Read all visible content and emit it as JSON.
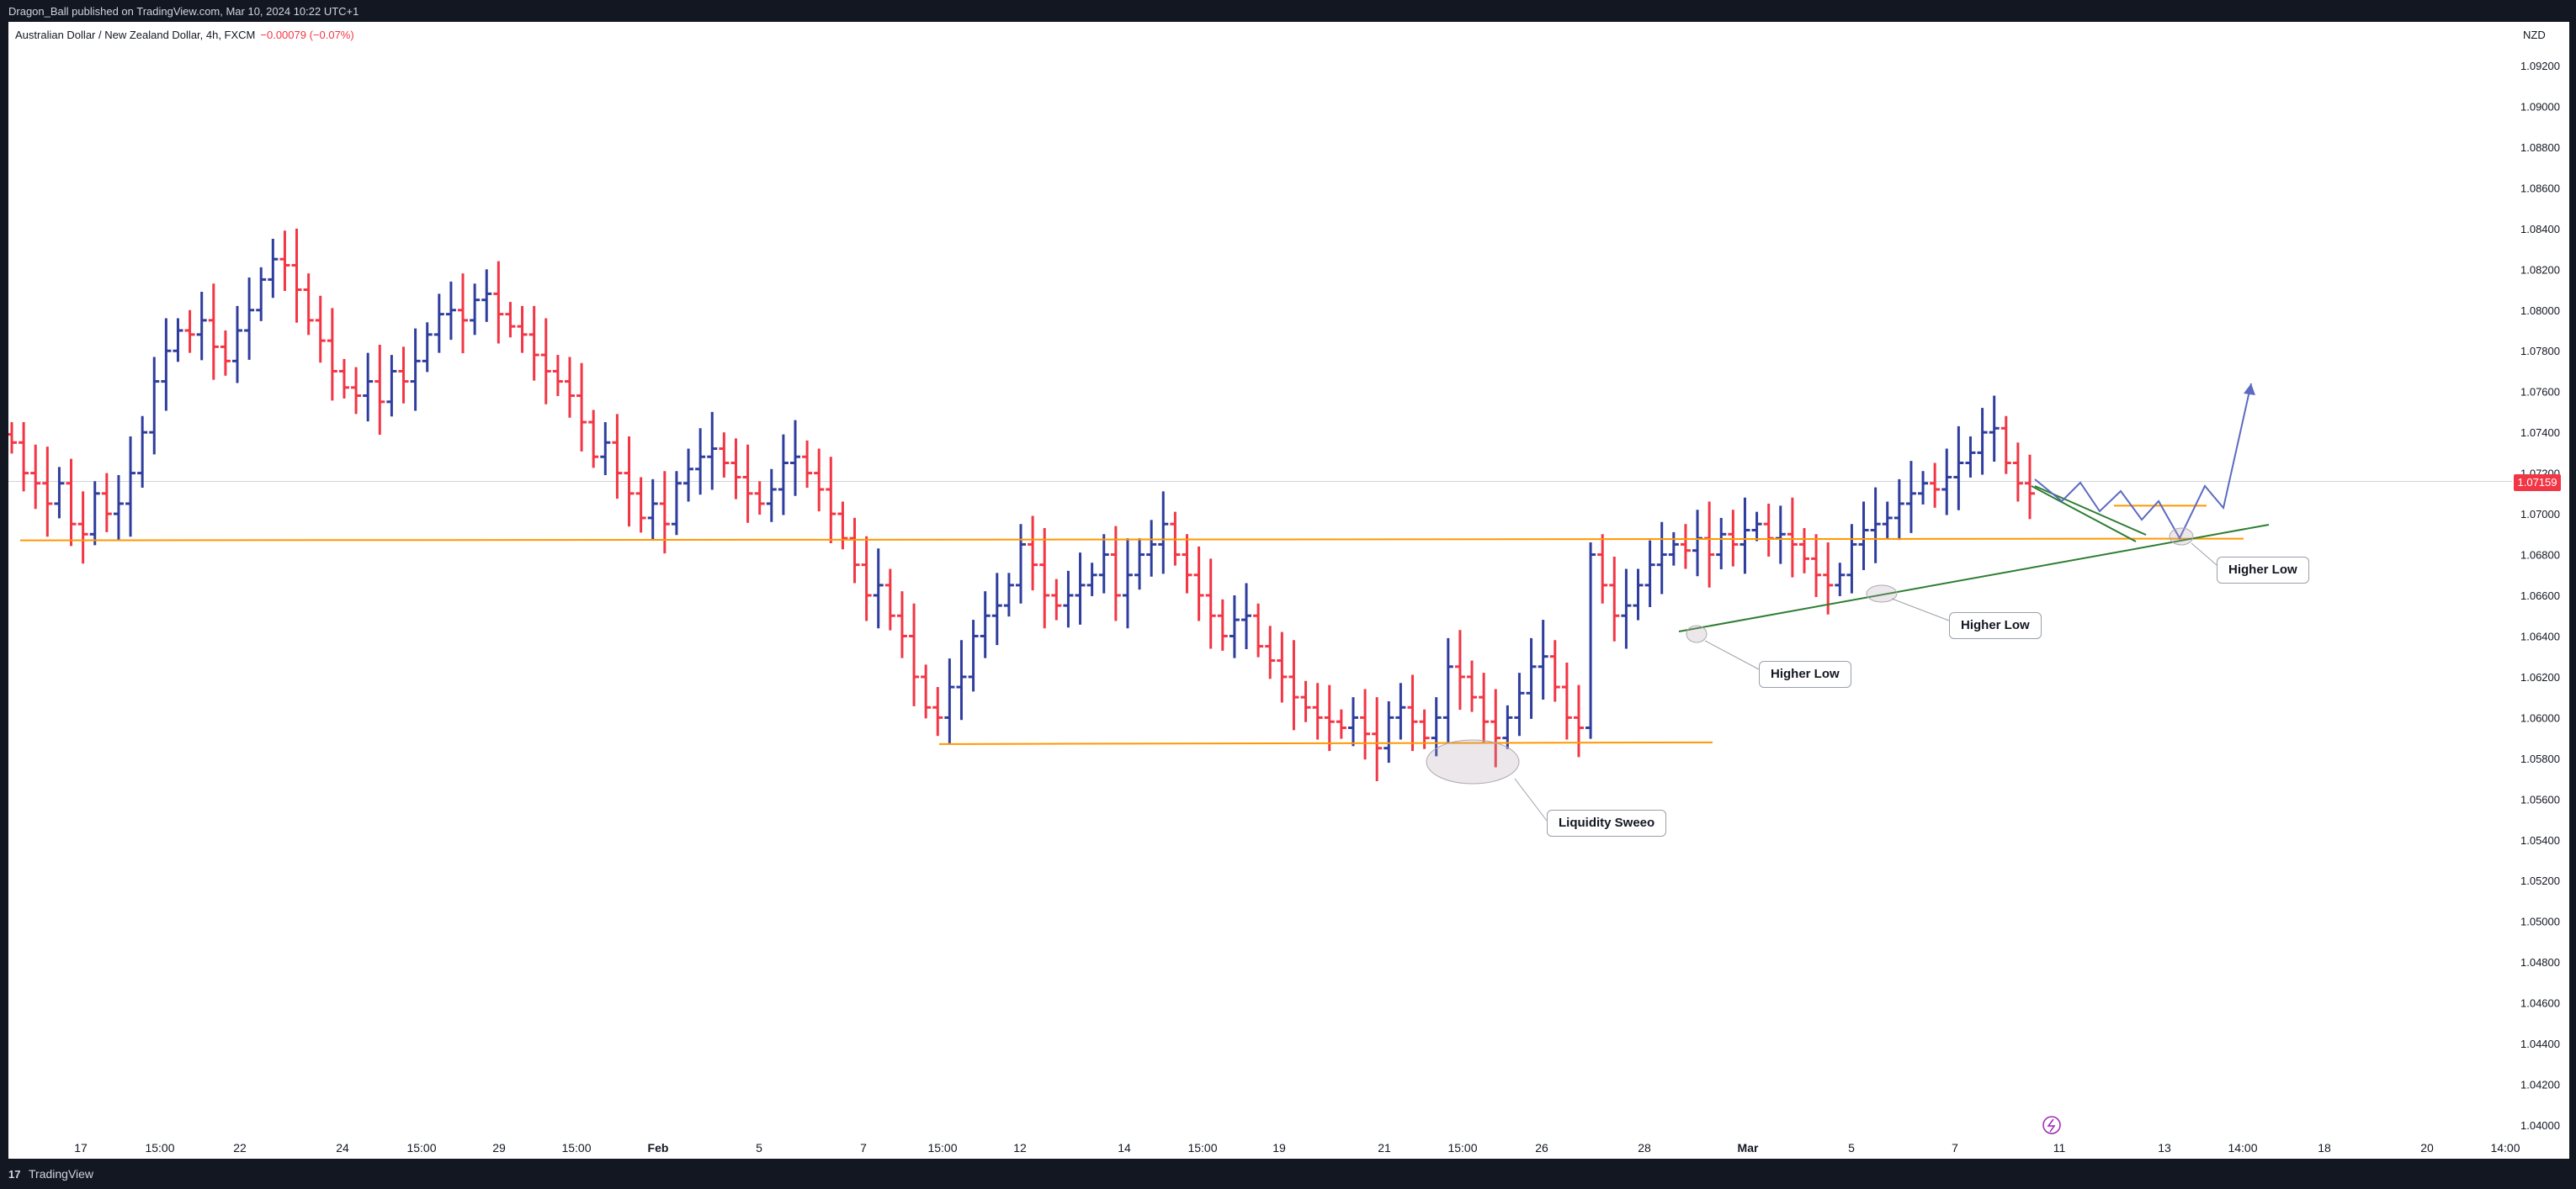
{
  "header": {
    "published": "Dragon_Ball published on TradingView.com, Mar 10, 2024 10:22 UTC+1"
  },
  "footer": {
    "logo": "17",
    "brand": "TradingView"
  },
  "legend": {
    "symbol": "Australian Dollar / New Zealand Dollar, 4h, FXCM",
    "change": "−0.00079 (−0.07%)"
  },
  "price_axis": {
    "currency": "NZD",
    "last_price": "1.07159"
  },
  "colors": {
    "up": "#2f3e9e",
    "down": "#f23645",
    "support": "#ff9800",
    "trend": "#2e7d32",
    "projection": "#5c6bc0"
  },
  "annotations": [
    {
      "label": "Liquidity Sweeo"
    },
    {
      "label": "Higher Low"
    },
    {
      "label": "Higher Low"
    },
    {
      "label": "Higher Low"
    }
  ],
  "chart_data": {
    "type": "ohlc",
    "x_tick_labels": [
      "17",
      "15:00",
      "22",
      "24",
      "15:00",
      "29",
      "15:00",
      "Feb",
      "5",
      "7",
      "15:00",
      "12",
      "14",
      "15:00",
      "19",
      "21",
      "15:00",
      "26",
      "28",
      "Mar",
      "5",
      "7",
      "11",
      "13",
      "14:00",
      "18",
      "20",
      "14:00"
    ],
    "y_tick_labels": [
      "1.09200",
      "1.09000",
      "1.08800",
      "1.08600",
      "1.08400",
      "1.08200",
      "1.08000",
      "1.07800",
      "1.07600",
      "1.07400",
      "1.07200",
      "1.07000",
      "1.06800",
      "1.06600",
      "1.06400",
      "1.06200",
      "1.06000",
      "1.05800",
      "1.05600",
      "1.05400",
      "1.05200",
      "1.05000",
      "1.04800",
      "1.04600",
      "1.04400",
      "1.04200",
      "1.04000"
    ],
    "ylim": [
      1.0395,
      1.0935
    ],
    "key_levels": [
      {
        "role": "upper-horizontal",
        "value": 1.0687
      },
      {
        "role": "lower-horizontal",
        "value": 1.0587
      },
      {
        "role": "recent-horizontal",
        "value": 1.0704
      }
    ],
    "close_path": [
      1.0735,
      1.072,
      1.0715,
      1.0705,
      1.0715,
      1.0695,
      1.069,
      1.071,
      1.07,
      1.0705,
      1.072,
      1.074,
      1.0765,
      1.078,
      1.079,
      1.0788,
      1.0795,
      1.0782,
      1.0775,
      1.079,
      1.08,
      1.0815,
      1.0825,
      1.0822,
      1.081,
      1.0795,
      1.0785,
      1.077,
      1.0762,
      1.0758,
      1.0765,
      1.0755,
      1.077,
      1.0765,
      1.0775,
      1.0788,
      1.0798,
      1.08,
      1.0795,
      1.0805,
      1.0808,
      1.0798,
      1.0792,
      1.0788,
      1.0778,
      1.077,
      1.0765,
      1.0758,
      1.0745,
      1.0728,
      1.0735,
      1.072,
      1.071,
      1.0698,
      1.0705,
      1.0695,
      1.0715,
      1.0722,
      1.0728,
      1.0732,
      1.0725,
      1.0718,
      1.071,
      1.0705,
      1.0712,
      1.0725,
      1.0728,
      1.072,
      1.0712,
      1.07,
      1.0688,
      1.0675,
      1.066,
      1.0665,
      1.065,
      1.064,
      1.062,
      1.0605,
      1.06,
      1.0615,
      1.062,
      1.064,
      1.065,
      1.0655,
      1.0665,
      1.0685,
      1.0675,
      1.066,
      1.0655,
      1.066,
      1.0665,
      1.067,
      1.068,
      1.066,
      1.067,
      1.068,
      1.0685,
      1.0695,
      1.068,
      1.067,
      1.066,
      1.065,
      1.064,
      1.0648,
      1.065,
      1.0635,
      1.0628,
      1.062,
      1.061,
      1.0605,
      1.06,
      1.0598,
      1.0595,
      1.06,
      1.0592,
      1.0585,
      1.06,
      1.0605,
      1.0598,
      1.059,
      1.06,
      1.0625,
      1.062,
      1.061,
      1.0598,
      1.059,
      1.06,
      1.0612,
      1.0625,
      1.063,
      1.0615,
      1.06,
      1.0595,
      1.068,
      1.0665,
      1.065,
      1.0655,
      1.0665,
      1.0675,
      1.068,
      1.0685,
      1.0682,
      1.0688,
      1.068,
      1.069,
      1.0685,
      1.0692,
      1.0695,
      1.0688,
      1.069,
      1.0685,
      1.0678,
      1.067,
      1.0665,
      1.067,
      1.0685,
      1.0692,
      1.0695,
      1.0698,
      1.0705,
      1.071,
      1.0715,
      1.0712,
      1.0718,
      1.0725,
      1.073,
      1.074,
      1.0742,
      1.0725,
      1.0715,
      1.071
    ]
  }
}
